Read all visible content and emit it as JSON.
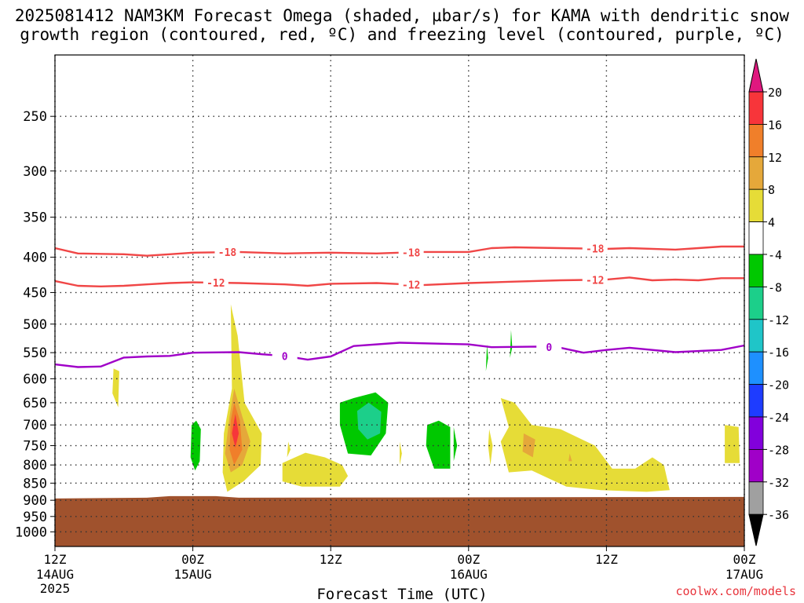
{
  "title": {
    "line1": "2025081412 NAM3KM Forecast Omega (shaded, µbar/s) for KAMA with dendritic snow",
    "line2": "growth region (contoured, red, ºC) and freezing level (contoured, purple, ºC)"
  },
  "watermark": "coolwx.com/models",
  "chart_data": {
    "type": "heatmap",
    "xlabel": "Forecast Time (UTC)",
    "x_range_hours": [
      0,
      60
    ],
    "x_ticks": [
      {
        "hour": 0,
        "label": "12Z",
        "sub": "14AUG",
        "sub2": "2025"
      },
      {
        "hour": 12,
        "label": "00Z",
        "sub": "15AUG",
        "sub2": ""
      },
      {
        "hour": 24,
        "label": "12Z",
        "sub": "",
        "sub2": ""
      },
      {
        "hour": 36,
        "label": "00Z",
        "sub": "16AUG",
        "sub2": ""
      },
      {
        "hour": 48,
        "label": "12Z",
        "sub": "",
        "sub2": ""
      },
      {
        "hour": 60,
        "label": "00Z",
        "sub": "17AUG",
        "sub2": ""
      }
    ],
    "y_ticks": [
      250,
      300,
      350,
      400,
      450,
      500,
      550,
      600,
      650,
      700,
      750,
      800,
      850,
      900,
      950,
      1000
    ],
    "y_range_mb": [
      200,
      1050
    ],
    "y_scale": "log",
    "grid": "dotted",
    "ground_level_mb": 890,
    "colorbar": {
      "labels": [
        "20",
        "16",
        "12",
        "8",
        "4",
        "-4",
        "-8",
        "-12",
        "-16",
        "-20",
        "-24",
        "-28",
        "-32",
        "-36"
      ],
      "colors": [
        "#e0187f",
        "#f7353a",
        "#f07f2a",
        "#e5a83a",
        "#e6dc37",
        "#ffffff",
        "#00c800",
        "#1ccf8a",
        "#1fc5c8",
        "#1e90ff",
        "#1e3cff",
        "#8200dc",
        "#a000c8",
        "#a0a0a0",
        "#000000"
      ]
    },
    "contours": [
      {
        "name": "-18",
        "color": "#f04646",
        "points": [
          [
            0,
            388
          ],
          [
            2,
            395
          ],
          [
            6,
            396
          ],
          [
            8,
            398
          ],
          [
            10,
            396
          ],
          [
            12,
            394
          ],
          [
            16,
            393
          ],
          [
            20,
            395
          ],
          [
            24,
            394
          ],
          [
            28,
            395
          ],
          [
            32,
            393
          ],
          [
            36,
            393
          ],
          [
            38,
            388
          ],
          [
            40,
            387
          ],
          [
            44,
            388
          ],
          [
            48,
            389
          ],
          [
            50,
            388
          ],
          [
            54,
            390
          ],
          [
            56,
            388
          ],
          [
            58,
            386
          ],
          [
            60,
            386
          ]
        ],
        "labels_at_hours": [
          15,
          31,
          47
        ]
      },
      {
        "name": "-12",
        "color": "#f04646",
        "points": [
          [
            0,
            433
          ],
          [
            2,
            440
          ],
          [
            4,
            441
          ],
          [
            6,
            440
          ],
          [
            8,
            438
          ],
          [
            10,
            436
          ],
          [
            12,
            435
          ],
          [
            16,
            436
          ],
          [
            20,
            438
          ],
          [
            22,
            440
          ],
          [
            24,
            437
          ],
          [
            28,
            436
          ],
          [
            32,
            439
          ],
          [
            36,
            436
          ],
          [
            40,
            434
          ],
          [
            44,
            432
          ],
          [
            48,
            431
          ],
          [
            50,
            428
          ],
          [
            52,
            432
          ],
          [
            54,
            431
          ],
          [
            56,
            432
          ],
          [
            58,
            429
          ],
          [
            60,
            429
          ]
        ],
        "labels_at_hours": [
          14,
          31,
          47
        ]
      },
      {
        "name": "0",
        "color": "#a000c8",
        "points": [
          [
            0,
            572
          ],
          [
            2,
            577
          ],
          [
            4,
            576
          ],
          [
            6,
            559
          ],
          [
            8,
            557
          ],
          [
            10,
            556
          ],
          [
            12,
            550
          ],
          [
            16,
            549
          ],
          [
            18,
            553
          ],
          [
            20,
            556
          ],
          [
            22,
            563
          ],
          [
            24,
            557
          ],
          [
            26,
            538
          ],
          [
            30,
            532
          ],
          [
            34,
            534
          ],
          [
            36,
            535
          ],
          [
            38,
            540
          ],
          [
            42,
            539
          ],
          [
            44,
            541
          ],
          [
            46,
            550
          ],
          [
            48,
            545
          ],
          [
            50,
            541
          ],
          [
            54,
            549
          ],
          [
            58,
            545
          ],
          [
            60,
            537
          ]
        ],
        "labels_at_hours": [
          20,
          43
        ]
      }
    ],
    "shaded_regions": [
      {
        "value": 4,
        "color": "#e6dc37",
        "points": [
          [
            5.1,
            580
          ],
          [
            5.6,
            585
          ],
          [
            5.5,
            660
          ],
          [
            5.0,
            630
          ]
        ]
      },
      {
        "value": 4,
        "color": "#e6dc37",
        "points": [
          [
            15.3,
            468
          ],
          [
            15.9,
            520
          ],
          [
            16.5,
            650
          ],
          [
            18.0,
            720
          ],
          [
            17.9,
            800
          ],
          [
            16.4,
            845
          ],
          [
            15.0,
            875
          ],
          [
            14.6,
            820
          ],
          [
            14.7,
            720
          ],
          [
            15.4,
            620
          ]
        ]
      },
      {
        "value": 8,
        "color": "#e5a83a",
        "points": [
          [
            15.6,
            620
          ],
          [
            16.3,
            680
          ],
          [
            17.0,
            740
          ],
          [
            16.3,
            800
          ],
          [
            15.3,
            820
          ],
          [
            14.8,
            770
          ],
          [
            15.2,
            680
          ]
        ]
      },
      {
        "value": 12,
        "color": "#f07f2a",
        "points": [
          [
            15.6,
            650
          ],
          [
            16.1,
            690
          ],
          [
            16.3,
            760
          ],
          [
            15.6,
            800
          ],
          [
            15.2,
            760
          ],
          [
            15.3,
            690
          ]
        ]
      },
      {
        "value": 16,
        "color": "#f7353a",
        "points": [
          [
            15.7,
            675
          ],
          [
            16.0,
            720
          ],
          [
            15.7,
            755
          ],
          [
            15.4,
            720
          ]
        ]
      },
      {
        "value": 4,
        "color": "#e6dc37",
        "points": [
          [
            20.3,
            740
          ],
          [
            20.5,
            760
          ],
          [
            20.2,
            780
          ]
        ]
      },
      {
        "value": 4,
        "color": "#e6dc37",
        "points": [
          [
            19.8,
            795
          ],
          [
            21.8,
            768
          ],
          [
            23.5,
            780
          ],
          [
            25.0,
            800
          ],
          [
            25.5,
            830
          ],
          [
            24.8,
            860
          ],
          [
            21.5,
            860
          ],
          [
            19.8,
            845
          ]
        ]
      },
      {
        "value": -4,
        "color": "#00c800",
        "points": [
          [
            12.3,
            690
          ],
          [
            12.7,
            710
          ],
          [
            12.6,
            790
          ],
          [
            12.2,
            815
          ],
          [
            11.8,
            780
          ],
          [
            11.9,
            700
          ]
        ]
      },
      {
        "value": -4,
        "color": "#00c800",
        "points": [
          [
            26.0,
            640
          ],
          [
            27.9,
            628
          ],
          [
            29.0,
            650
          ],
          [
            28.8,
            720
          ],
          [
            27.5,
            775
          ],
          [
            25.5,
            770
          ],
          [
            24.8,
            700
          ],
          [
            24.8,
            650
          ]
        ]
      },
      {
        "value": -8,
        "color": "#1ccf8a",
        "points": [
          [
            26.3,
            668
          ],
          [
            27.3,
            650
          ],
          [
            28.4,
            670
          ],
          [
            28.3,
            720
          ],
          [
            27.2,
            735
          ],
          [
            26.4,
            710
          ]
        ]
      },
      {
        "value": -4,
        "color": "#00c800",
        "points": [
          [
            33.4,
            690
          ],
          [
            34.4,
            705
          ],
          [
            34.4,
            810
          ],
          [
            33.0,
            810
          ],
          [
            32.3,
            750
          ],
          [
            32.4,
            700
          ]
        ]
      },
      {
        "value": -4,
        "color": "#00c800",
        "points": [
          [
            34.7,
            705
          ],
          [
            35.0,
            750
          ],
          [
            34.7,
            790
          ]
        ]
      },
      {
        "value": -4,
        "color": "#00c800",
        "points": [
          [
            37.6,
            535
          ],
          [
            37.7,
            560
          ],
          [
            37.5,
            585
          ]
        ]
      },
      {
        "value": -4,
        "color": "#00c800",
        "points": [
          [
            39.7,
            510
          ],
          [
            39.8,
            540
          ],
          [
            39.6,
            560
          ]
        ]
      },
      {
        "value": 4,
        "color": "#e6dc37",
        "points": [
          [
            30.0,
            740
          ],
          [
            30.2,
            770
          ],
          [
            30.0,
            800
          ]
        ]
      },
      {
        "value": 4,
        "color": "#e6dc37",
        "points": [
          [
            37.8,
            710
          ],
          [
            38.1,
            750
          ],
          [
            37.9,
            800
          ],
          [
            37.7,
            750
          ]
        ]
      },
      {
        "value": 4,
        "color": "#e6dc37",
        "points": [
          [
            38.8,
            640
          ],
          [
            40.0,
            650
          ],
          [
            41.5,
            700
          ],
          [
            44.0,
            710
          ],
          [
            47.0,
            750
          ],
          [
            48.5,
            810
          ],
          [
            50.5,
            810
          ],
          [
            52.0,
            780
          ],
          [
            53.0,
            800
          ],
          [
            53.5,
            870
          ],
          [
            51.5,
            875
          ],
          [
            47.5,
            870
          ],
          [
            44.5,
            860
          ],
          [
            41.5,
            815
          ],
          [
            39.5,
            820
          ],
          [
            38.8,
            740
          ],
          [
            39.5,
            705
          ]
        ]
      },
      {
        "value": 8,
        "color": "#e5a83a",
        "points": [
          [
            40.8,
            720
          ],
          [
            41.8,
            735
          ],
          [
            41.6,
            780
          ],
          [
            40.7,
            765
          ]
        ]
      },
      {
        "value": 8,
        "color": "#e5a83a",
        "points": [
          [
            44.8,
            770
          ],
          [
            45.0,
            790
          ],
          [
            44.7,
            790
          ]
        ]
      },
      {
        "value": 4,
        "color": "#e6dc37",
        "points": [
          [
            58.3,
            700
          ],
          [
            59.5,
            705
          ],
          [
            59.6,
            795
          ],
          [
            58.3,
            795
          ]
        ]
      }
    ]
  }
}
